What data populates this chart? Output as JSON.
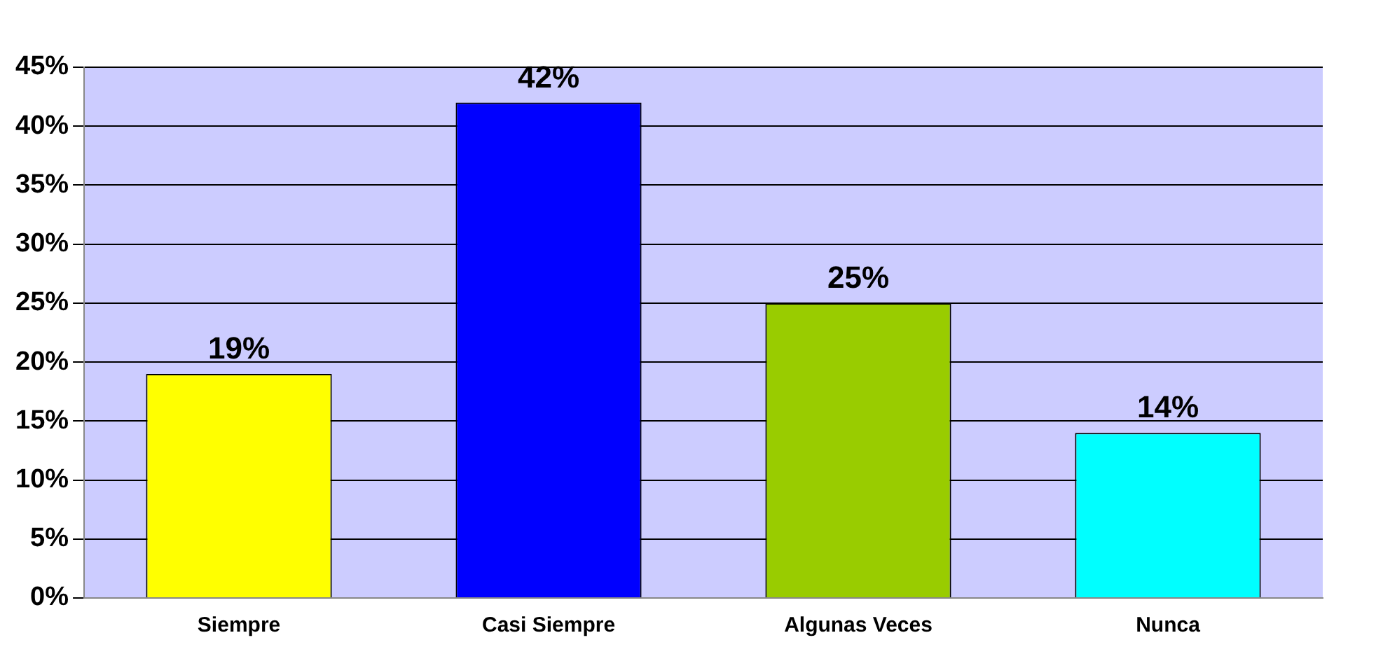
{
  "chart_data": {
    "type": "bar",
    "categories": [
      "Siempre",
      "Casi Siempre",
      "Algunas Veces",
      "Nunca"
    ],
    "values": [
      19,
      42,
      25,
      14
    ],
    "colors": [
      "#ffff00",
      "#0000ff",
      "#99cc00",
      "#00ffff"
    ],
    "value_labels": [
      "19%",
      "42%",
      "25%",
      "14%"
    ],
    "ylim": [
      0,
      45
    ],
    "yticks": [
      {
        "value": 0,
        "label": "0%"
      },
      {
        "value": 5,
        "label": "5%"
      },
      {
        "value": 10,
        "label": "10%"
      },
      {
        "value": 15,
        "label": "15%"
      },
      {
        "value": 20,
        "label": "20%"
      },
      {
        "value": 25,
        "label": "25%"
      },
      {
        "value": 30,
        "label": "30%"
      },
      {
        "value": 35,
        "label": "35%"
      },
      {
        "value": 40,
        "label": "40%"
      },
      {
        "value": 45,
        "label": "45%"
      }
    ],
    "grid": "y",
    "legend": false
  }
}
